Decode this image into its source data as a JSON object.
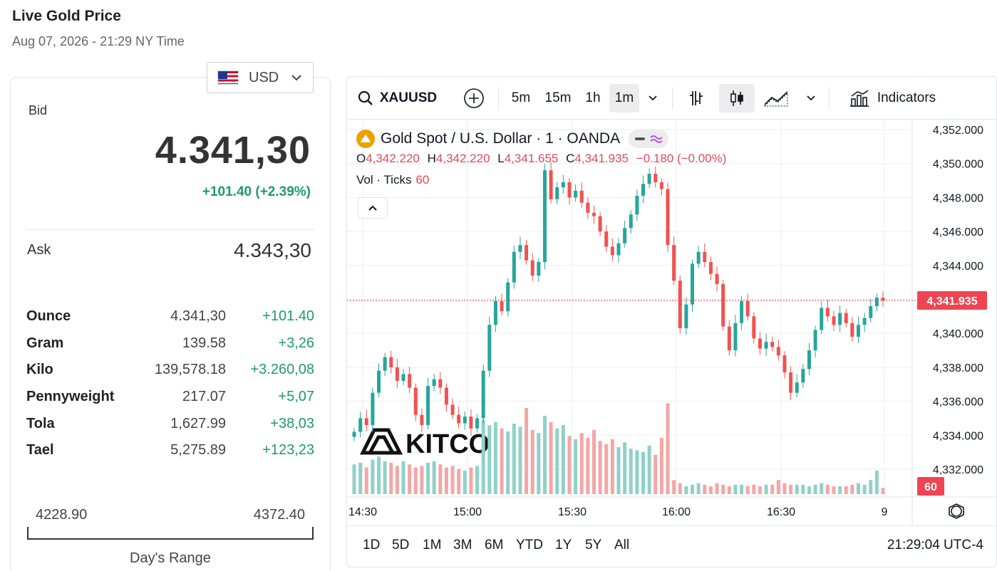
{
  "header": {
    "title": "Live Gold Price",
    "subtitle": "Aug 07, 2026 - 21:29 NY Time"
  },
  "currency": {
    "label": "USD",
    "flag": "us-flag-icon"
  },
  "bid": {
    "label": "Bid",
    "value": "4.341,30",
    "change": "+101.40 (+2.39%)"
  },
  "ask": {
    "label": "Ask",
    "value": "4.343,30"
  },
  "units": [
    {
      "name": "Ounce",
      "price": "4.341,30",
      "change": "+101.40"
    },
    {
      "name": "Gram",
      "price": "139.58",
      "change": "+3,26"
    },
    {
      "name": "Kilo",
      "price": "139,578.18",
      "change": "+3.260,08"
    },
    {
      "name": "Pennyweight",
      "price": "217.07",
      "change": "+5,07"
    },
    {
      "name": "Tola",
      "price": "1,627.99",
      "change": "+38,03"
    },
    {
      "name": "Tael",
      "price": "5,275.89",
      "change": "+123,23"
    }
  ],
  "day_range": {
    "low": "4228.90",
    "high": "4372.40",
    "label": "Day's Range"
  },
  "toolbar": {
    "symbol": "XAUUSD",
    "intervals": [
      "5m",
      "15m",
      "1h",
      "1m"
    ],
    "active_interval": "1m",
    "indicators_label": "Indicators"
  },
  "legend": {
    "title": "Gold Spot / U.S. Dollar · 1 · OANDA",
    "o_label": "O",
    "o_value": "4,342.220",
    "h_label": "H",
    "h_value": "4,342.220",
    "l_label": "L",
    "l_value": "4,341.655",
    "c_label": "C",
    "c_value": "4,341.935",
    "change": "−0.180 (−0.00%)",
    "vol_label": "Vol · Ticks",
    "vol_value": "60"
  },
  "watermark": "KITCO",
  "bottom": {
    "ranges": [
      "1D",
      "5D",
      "1M",
      "3M",
      "6M",
      "YTD",
      "1Y",
      "5Y",
      "All"
    ],
    "clock": "21:29:04 UTC-4"
  },
  "colors": {
    "up": "#26a69a",
    "down": "#ef5350",
    "vol_up": "#8fd1c9",
    "vol_down": "#f3a7a5",
    "positive_text": "#1e9a6f",
    "last_price_bg": "#ef4452"
  },
  "chart_data": {
    "type": "candlestick",
    "y_ticks": [
      "4,352.000",
      "4,350.000",
      "4,348.000",
      "4,346.000",
      "4,344.000",
      "4,342.000",
      "4,340.000",
      "4,338.000",
      "4,336.000",
      "4,334.000",
      "4,332.000"
    ],
    "y_range": [
      4331.0,
      4352.5
    ],
    "x_ticks": [
      "14:30",
      "15:00",
      "15:30",
      "16:00",
      "16:30",
      "9"
    ],
    "last_price": 4341.935,
    "last_price_label": "4,341.935",
    "last_volume_label": "60",
    "grid": true,
    "closes": [
      4334.2,
      4335.0,
      4334.6,
      4336.5,
      4337.8,
      4338.6,
      4338.0,
      4337.2,
      4337.6,
      4336.8,
      4335.2,
      4334.6,
      4336.9,
      4337.3,
      4336.8,
      4335.8,
      4335.2,
      4334.7,
      4335.1,
      4334.4,
      4335.0,
      4337.8,
      4340.5,
      4341.9,
      4341.3,
      4343.0,
      4344.8,
      4345.2,
      4344.3,
      4343.4,
      4344.2,
      4349.6,
      4347.9,
      4348.6,
      4348.9,
      4348.0,
      4348.4,
      4347.7,
      4347.1,
      4346.9,
      4346.0,
      4345.1,
      4344.6,
      4345.3,
      4346.2,
      4347.0,
      4348.1,
      4348.8,
      4349.4,
      4348.9,
      4348.5,
      4345.2,
      4343.1,
      4340.3,
      4341.7,
      4344.1,
      4344.8,
      4344.2,
      4343.5,
      4342.9,
      4340.4,
      4339.0,
      4340.6,
      4341.9,
      4341.0,
      4339.7,
      4339.1,
      4339.5,
      4339.2,
      4338.7,
      4337.7,
      4336.5,
      4337.1,
      4337.9,
      4339.0,
      4340.2,
      4341.5,
      4341.0,
      4340.5,
      4341.2,
      4340.6,
      4339.8,
      4340.5,
      4340.9,
      4341.6,
      4342.1,
      4341.935
    ],
    "volumes": [
      38,
      40,
      34,
      44,
      48,
      42,
      40,
      36,
      42,
      38,
      34,
      36,
      40,
      42,
      38,
      34,
      36,
      32,
      30,
      34,
      36,
      95,
      88,
      92,
      84,
      80,
      90,
      86,
      110,
      82,
      78,
      100,
      92,
      84,
      88,
      74,
      70,
      78,
      72,
      82,
      68,
      64,
      70,
      60,
      66,
      58,
      56,
      54,
      62,
      50,
      72,
      116,
      18,
      14,
      10,
      12,
      14,
      12,
      10,
      14,
      12,
      10,
      12,
      12,
      10,
      12,
      10,
      12,
      12,
      18,
      14,
      12,
      12,
      12,
      10,
      12,
      14,
      12,
      10,
      10,
      10,
      12,
      14,
      12,
      18,
      30,
      8
    ]
  }
}
